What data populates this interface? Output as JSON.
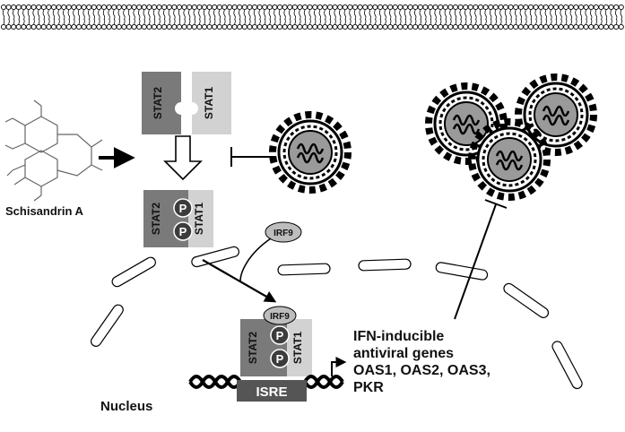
{
  "drug": {
    "name": "Schisandrin A"
  },
  "proteins": {
    "stat2": "STAT2",
    "stat1": "STAT1",
    "irf9": "IRF9",
    "phospho": "P"
  },
  "dna": {
    "isre": "ISRE"
  },
  "nucleus": {
    "label": "Nucleus"
  },
  "genes": {
    "line1": "IFN-inducible",
    "line2": "antiviral genes",
    "line3": "OAS1, OAS2, OAS3,",
    "line4": "PKR"
  },
  "colors": {
    "stat2": "#7a7a7a",
    "stat1": "#d2d2d2",
    "phospho": "#3c3c3c",
    "irf9": "#bdbdbd",
    "isre": "#555555",
    "virus_core": "#9a9a9a"
  }
}
